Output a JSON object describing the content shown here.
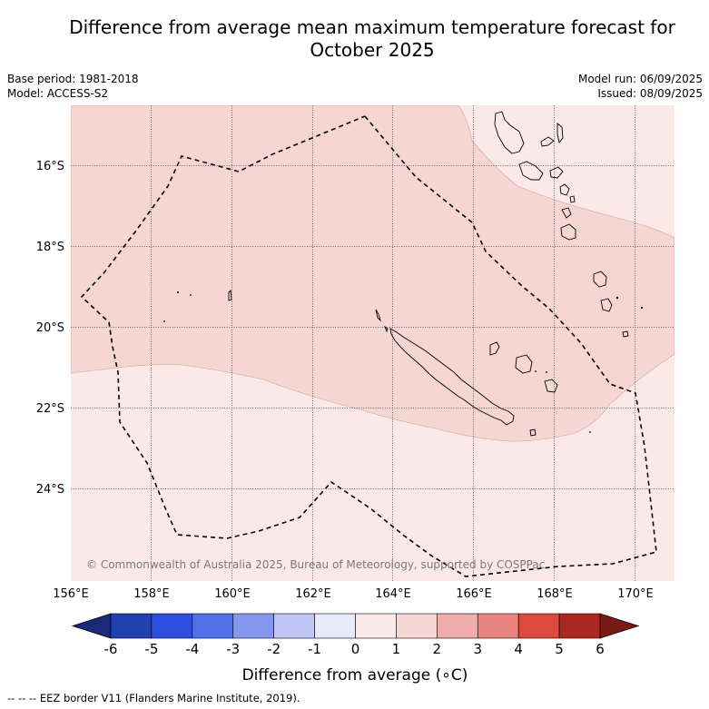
{
  "title_line1": "Difference from average mean maximum temperature forecast for",
  "title_line2": "October 2025",
  "base_period": "Base period: 1981-2018",
  "model": "Model: ACCESS-S2",
  "model_run": "Model run: 06/09/2025",
  "issued": "Issued: 08/09/2025",
  "copyright": "© Commonwealth of Australia 2025, Bureau of Meteorology, supported by COSPPac",
  "lat_labels": [
    "16°S",
    "18°S",
    "20°S",
    "22°S",
    "24°S"
  ],
  "lon_labels": [
    "156°E",
    "158°E",
    "160°E",
    "162°E",
    "164°E",
    "166°E",
    "168°E",
    "170°E"
  ],
  "colorbar": {
    "ticks": [
      "-6",
      "-5",
      "-4",
      "-3",
      "-2",
      "-1",
      "0",
      "1",
      "2",
      "3",
      "4",
      "5",
      "6"
    ],
    "colors": [
      "#1b2a78",
      "#2340b0",
      "#2f4fe0",
      "#5470e6",
      "#8497ec",
      "#bfc6f4",
      "#e8eafb",
      "#fbe9e7",
      "#f5d6d3",
      "#efaeaa",
      "#e8847d",
      "#dc4a3f",
      "#ae2823",
      "#7a1a18"
    ],
    "label": "Difference from average (",
    "label_unit": "∘C)"
  },
  "map_colors": {
    "anomaly_0_1": "#fbe9e7",
    "anomaly_1_2": "#f5d6d3"
  },
  "legend_line_marker": "--  --  --",
  "eez_legend": "EEZ border V11 (Flanders Marine Institute, 2019)."
}
